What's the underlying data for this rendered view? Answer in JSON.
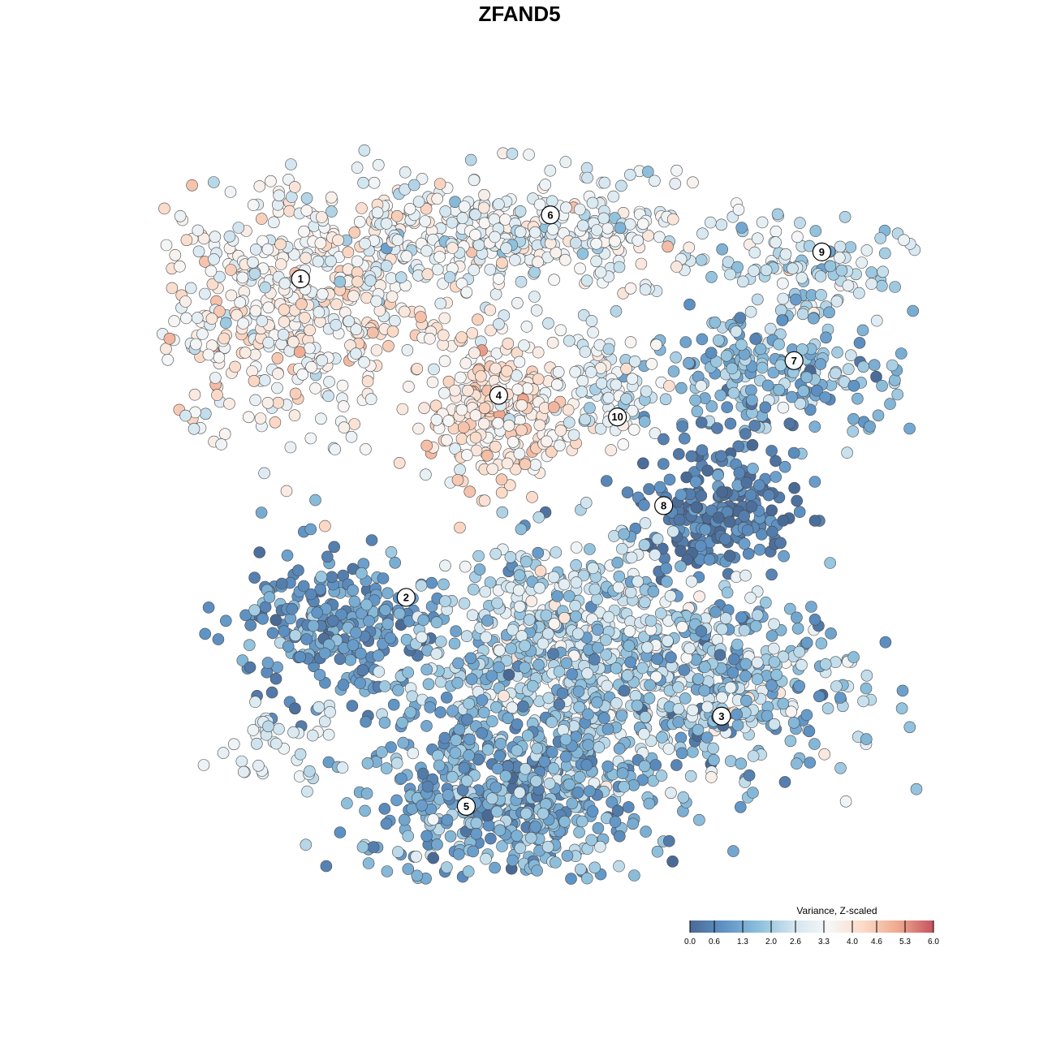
{
  "chart_data": {
    "type": "scatter",
    "title": "ZFAND5",
    "xlabel": "",
    "ylabel": "",
    "xlim": [
      -50,
      50
    ],
    "ylim": [
      -50,
      50
    ],
    "grid": false,
    "point_color_variable": "Variance, Z-scaled",
    "clusters": [
      {
        "label": "1",
        "label_pos": [
          -28.4,
          31.2
        ],
        "center": [
          -30,
          27
        ],
        "spread": [
          10,
          8
        ],
        "n": 500,
        "value_mean": 3.6,
        "value_sd": 0.6
      },
      {
        "label": "6",
        "label_pos": [
          4.0,
          39.5
        ],
        "center": [
          -3,
          37
        ],
        "spread": [
          14,
          4
        ],
        "n": 420,
        "value_mean": 3.0,
        "value_sd": 0.6
      },
      {
        "label": "9",
        "label_pos": [
          39.2,
          34.7
        ],
        "center": [
          38,
          32
        ],
        "spread": [
          6,
          3.5
        ],
        "n": 110,
        "value_mean": 2.3,
        "value_sd": 0.5
      },
      {
        "label": "7",
        "label_pos": [
          35.6,
          20.6
        ],
        "center": [
          33,
          19
        ],
        "spread": [
          9,
          4
        ],
        "n": 220,
        "value_mean": 1.5,
        "value_sd": 0.6
      },
      {
        "label": "4",
        "label_pos": [
          -2.7,
          16.1
        ],
        "center": [
          -3,
          14
        ],
        "spread": [
          4.5,
          5
        ],
        "n": 260,
        "value_mean": 3.9,
        "value_sd": 0.5
      },
      {
        "label": "10",
        "label_pos": [
          12.7,
          13.3
        ],
        "center": [
          11,
          17
        ],
        "spread": [
          3.5,
          4
        ],
        "n": 90,
        "value_mean": 2.9,
        "value_sd": 0.5
      },
      {
        "label": "8",
        "label_pos": [
          18.7,
          1.8
        ],
        "center": [
          26,
          1
        ],
        "spread": [
          5,
          4.5
        ],
        "n": 230,
        "value_mean": 0.5,
        "value_sd": 0.4
      },
      {
        "label": "2",
        "label_pos": [
          -14.7,
          -10.1
        ],
        "center": [
          -24,
          -14
        ],
        "spread": [
          6,
          5
        ],
        "n": 260,
        "value_mean": 1.0,
        "value_sd": 0.5
      },
      {
        "label": "",
        "label_pos": null,
        "center": [
          7,
          -17
        ],
        "spread": [
          9,
          7
        ],
        "n": 650,
        "value_mean": 2.3,
        "value_sd": 0.7
      },
      {
        "label": "3",
        "label_pos": [
          26.2,
          -25.5
        ],
        "center": [
          26,
          -22
        ],
        "spread": [
          9,
          6
        ],
        "n": 380,
        "value_mean": 1.9,
        "value_sd": 0.9
      },
      {
        "label": "5",
        "label_pos": [
          -6.9,
          -37.2
        ],
        "center": [
          -2,
          -36
        ],
        "spread": [
          9,
          7
        ],
        "n": 600,
        "value_mean": 1.4,
        "value_sd": 0.6
      },
      {
        "label": "",
        "label_pos": null,
        "center": [
          -30,
          -29
        ],
        "spread": [
          4,
          2.5
        ],
        "n": 40,
        "value_mean": 2.7,
        "value_sd": 0.4
      }
    ],
    "legend": {
      "title": "Variance, Z-scaled",
      "placement": "bottom-right",
      "ticks": [
        "0.0",
        "0.6",
        "1.3",
        "2.0",
        "2.6",
        "3.3",
        "4.0",
        "4.6",
        "5.3",
        "6.0"
      ],
      "range": [
        0,
        6
      ],
      "colors": [
        "#4a6a96",
        "#5f94c6",
        "#8ec0dc",
        "#d3e6f0",
        "#f7f7f7",
        "#fbd9c6",
        "#eea88e",
        "#c6525f"
      ]
    }
  }
}
